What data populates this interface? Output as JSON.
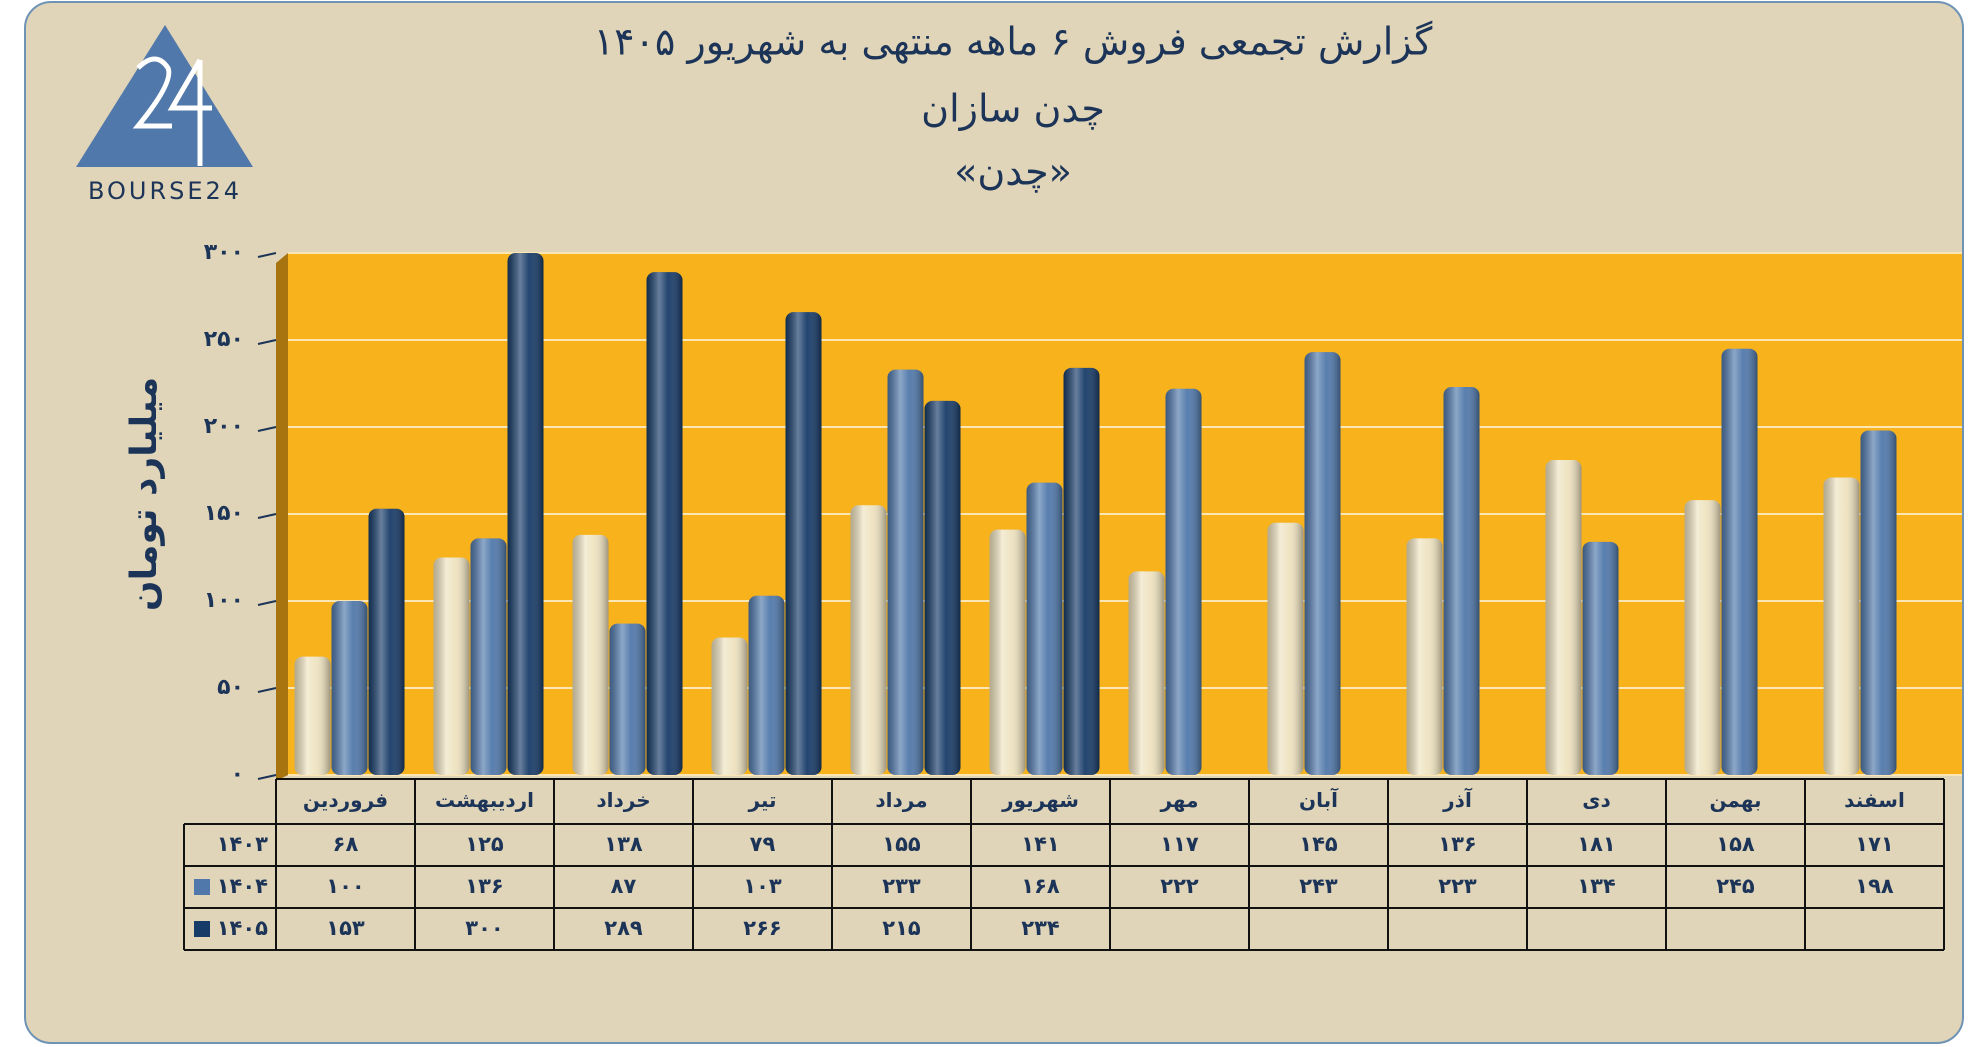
{
  "chart_data": {
    "type": "bar",
    "title": "گزارش تجمعی فروش ۶ ماهه منتهی به شهریور ۱۴۰۵",
    "subtitle": "چدن سازان",
    "symbol": "«چدن»",
    "logo": "BOURSE24",
    "y_label": "میلیارد تومان",
    "categories": [
      "فروردین",
      "اردیبهشت",
      "خرداد",
      "تیر",
      "مرداد",
      "شهریور",
      "مهر",
      "آبان",
      "آذر",
      "دی",
      "بهمن",
      "اسفند"
    ],
    "series": [
      {
        "name": "۱۴۰۳",
        "color": "#eee2bf",
        "swatch": false,
        "values": [
          68,
          125,
          138,
          79,
          155,
          141,
          117,
          145,
          136,
          181,
          158,
          171
        ],
        "value_labels": [
          "۶۸",
          "۱۲۵",
          "۱۳۸",
          "۷۹",
          "۱۵۵",
          "۱۴۱",
          "۱۱۷",
          "۱۴۵",
          "۱۳۶",
          "۱۸۱",
          "۱۵۸",
          "۱۷۱"
        ]
      },
      {
        "name": "۱۴۰۴",
        "color": "#5078aa",
        "swatch": true,
        "values": [
          100,
          136,
          87,
          103,
          233,
          168,
          222,
          243,
          223,
          134,
          245,
          198
        ],
        "value_labels": [
          "۱۰۰",
          "۱۳۶",
          "۸۷",
          "۱۰۳",
          "۲۳۳",
          "۱۶۸",
          "۲۲۲",
          "۲۴۳",
          "۲۲۳",
          "۱۳۴",
          "۲۴۵",
          "۱۹۸"
        ]
      },
      {
        "name": "۱۴۰۵",
        "color": "#173b68",
        "swatch": true,
        "values": [
          153,
          300,
          289,
          266,
          215,
          234,
          null,
          null,
          null,
          null,
          null,
          null
        ],
        "value_labels": [
          "۱۵۳",
          "۳۰۰",
          "۲۸۹",
          "۲۶۶",
          "۲۱۵",
          "۲۳۴",
          null,
          null,
          null,
          null,
          null,
          null
        ]
      }
    ],
    "ylim": [
      0,
      300
    ],
    "yticks": [
      {
        "value": 0,
        "label": "۰"
      },
      {
        "value": 50,
        "label": "۵۰"
      },
      {
        "value": 100,
        "label": "۱۰۰"
      },
      {
        "value": 150,
        "label": "۱۵۰"
      },
      {
        "value": 200,
        "label": "۲۰۰"
      },
      {
        "value": 250,
        "label": "۲۵۰"
      },
      {
        "value": 300,
        "label": "۳۰۰"
      }
    ],
    "grid": true,
    "plot_color": "#f7b21c"
  }
}
